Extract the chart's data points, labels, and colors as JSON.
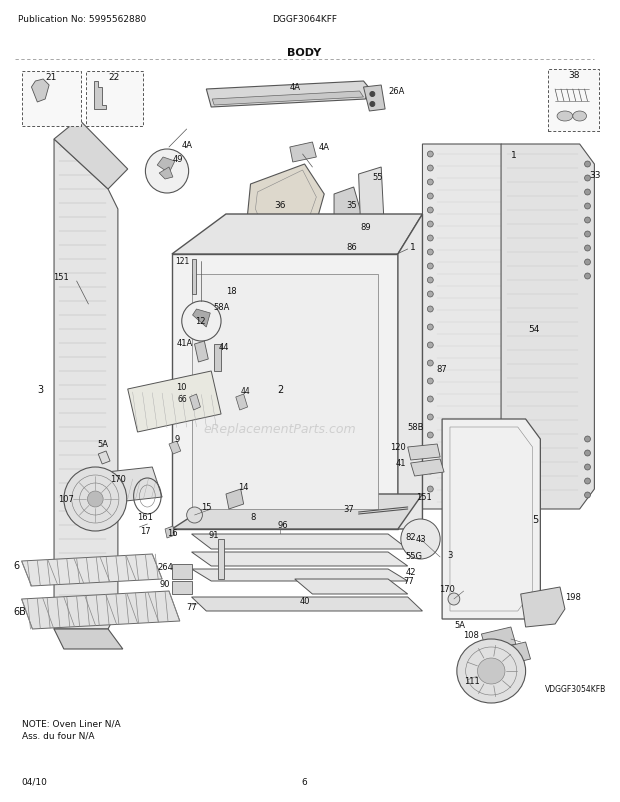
{
  "pub_no": "Publication No: 5995562880",
  "model": "DGGF3064KFF",
  "title": "BODY",
  "date": "04/10",
  "page": "6",
  "watermark": "eReplacementParts.com",
  "note_line1": "NOTE: Oven Liner N/A",
  "note_line2": "Ass. du four N/A",
  "vdgg": "VDGGF3054KFB",
  "bg_color": "#ffffff",
  "fig_width": 6.2,
  "fig_height": 8.03,
  "dpi": 100
}
